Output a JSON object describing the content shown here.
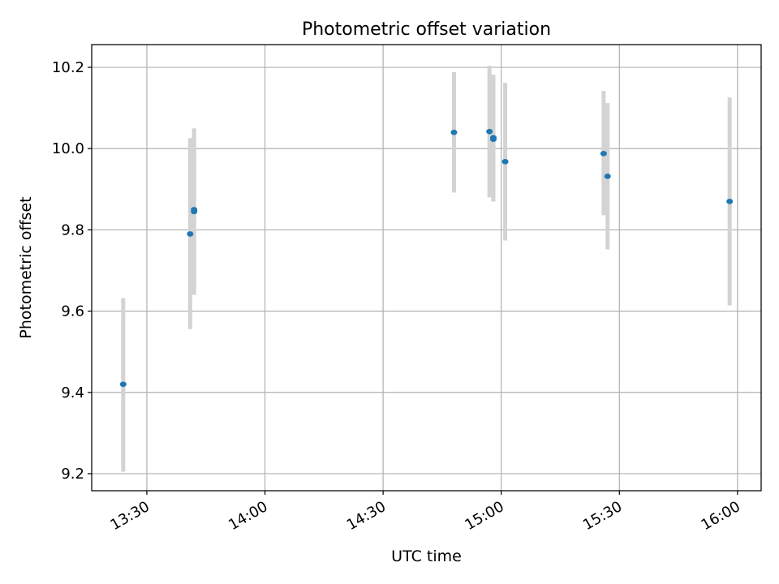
{
  "chart_data": {
    "type": "scatter",
    "title": "Photometric offset variation",
    "xlabel": "UTC time",
    "ylabel": "Photometric offset",
    "x_unit": "UTC time (HH:MM)",
    "xlim": [
      "13:16",
      "16:06"
    ],
    "ylim": [
      9.158,
      10.256
    ],
    "xticks": [
      "13:30",
      "14:00",
      "14:30",
      "15:00",
      "15:30",
      "16:00"
    ],
    "yticks": [
      9.2,
      9.4,
      9.6,
      9.8,
      10.0,
      10.2
    ],
    "grid": true,
    "legend": "none",
    "colors": {
      "points": "#1f77b4",
      "error_bars": "#d3d3d3",
      "grid": "#b0b0b0",
      "axes": "#000000"
    },
    "points": [
      {
        "x": "13:24",
        "y": 9.42,
        "ylow": 9.205,
        "yhigh": 9.632
      },
      {
        "x": "13:41",
        "y": 9.79,
        "ylow": 9.556,
        "yhigh": 10.026
      },
      {
        "x": "13:42",
        "y": 9.845,
        "ylow": 9.64,
        "yhigh": 10.05
      },
      {
        "x": "13:42",
        "y": 9.85,
        "ylow": 9.655,
        "yhigh": 10.044
      },
      {
        "x": "14:48",
        "y": 10.04,
        "ylow": 9.892,
        "yhigh": 10.188
      },
      {
        "x": "14:57",
        "y": 10.042,
        "ylow": 9.88,
        "yhigh": 10.204
      },
      {
        "x": "14:58",
        "y": 10.027,
        "ylow": 9.872,
        "yhigh": 10.182
      },
      {
        "x": "14:58",
        "y": 10.023,
        "ylow": 9.87,
        "yhigh": 10.178
      },
      {
        "x": "15:01",
        "y": 9.968,
        "ylow": 9.774,
        "yhigh": 10.162
      },
      {
        "x": "15:26",
        "y": 9.988,
        "ylow": 9.836,
        "yhigh": 10.142
      },
      {
        "x": "15:27",
        "y": 9.932,
        "ylow": 9.752,
        "yhigh": 10.112
      },
      {
        "x": "15:58",
        "y": 9.87,
        "ylow": 9.614,
        "yhigh": 10.126
      }
    ]
  }
}
